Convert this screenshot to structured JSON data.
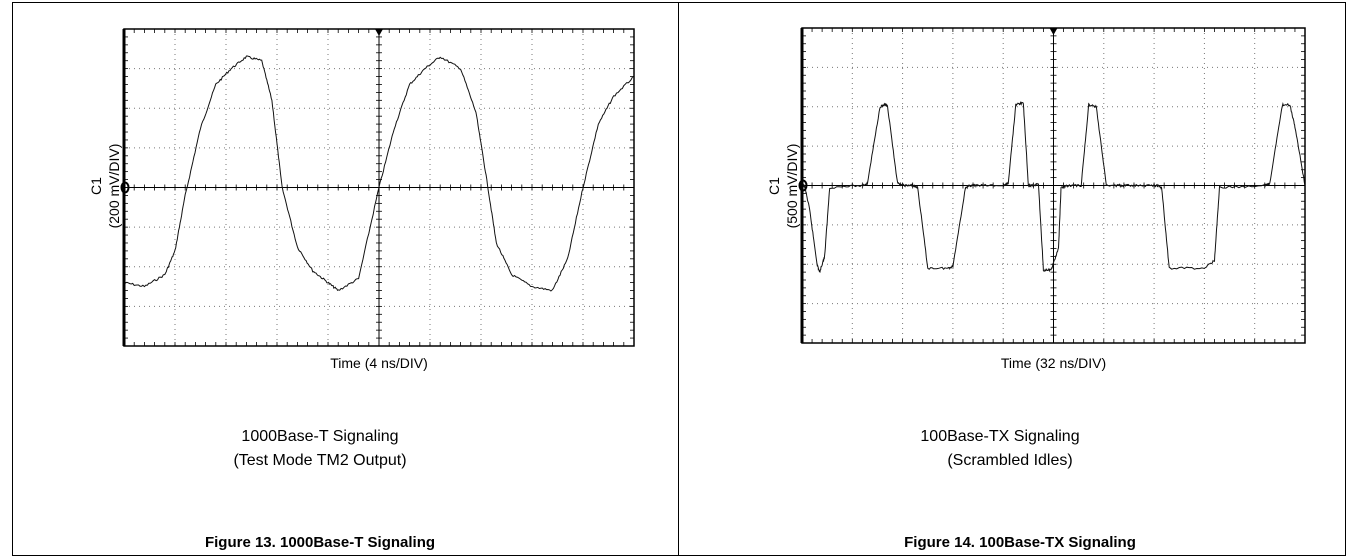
{
  "chart_data": [
    {
      "type": "line",
      "ylabel_channel": "C1",
      "ylabel_scale": "(200 mV/DIV)",
      "xlabel": "Time (4 ns/DIV)",
      "xlim": [
        0,
        10
      ],
      "ylim": [
        -4,
        4
      ],
      "grid": true,
      "caption_line1": "1000Base-T Signaling",
      "caption_line2": "(Test Mode TM2 Output)",
      "figure_title": "Figure 13. 1000Base-T Signaling",
      "series": [
        {
          "x": [
            0,
            0.4,
            0.8,
            1.0,
            1.2,
            1.5,
            1.8,
            2.1,
            2.4,
            2.7,
            2.9,
            3.1,
            3.4,
            3.7,
            4.0,
            4.2,
            4.6,
            5.0,
            5.3,
            5.6,
            5.9,
            6.2,
            6.6,
            6.9,
            7.1,
            7.3,
            7.6,
            8.0,
            8.4,
            8.7,
            9.0,
            9.3,
            9.6,
            10.0
          ],
          "y": [
            -2.4,
            -2.5,
            -2.2,
            -1.6,
            -0.2,
            1.5,
            2.6,
            3.0,
            3.3,
            3.2,
            2.2,
            0.0,
            -1.5,
            -2.1,
            -2.4,
            -2.6,
            -2.3,
            0.0,
            1.5,
            2.6,
            3.0,
            3.3,
            3.0,
            1.9,
            0.3,
            -1.4,
            -2.2,
            -2.5,
            -2.6,
            -1.8,
            0.0,
            1.6,
            2.3,
            2.8
          ]
        }
      ]
    },
    {
      "type": "line",
      "ylabel_channel": "C1",
      "ylabel_scale": "(500 mV/DIV)",
      "xlabel": "Time (32 ns/DIV)",
      "xlim": [
        0,
        10
      ],
      "ylim": [
        -4,
        4
      ],
      "grid": true,
      "caption_line1": "100Base-TX Signaling",
      "caption_line2": "(Scrambled Idles)",
      "figure_title": "Figure 14. 100Base-TX Signaling",
      "series": [
        {
          "x": [
            0,
            0.05,
            0.15,
            0.3,
            0.35,
            0.45,
            0.55,
            1.2,
            1.3,
            1.55,
            1.65,
            1.7,
            1.9,
            2.05,
            2.2,
            2.3,
            2.5,
            2.9,
            3.0,
            3.25,
            3.35,
            3.5,
            4.0,
            4.1,
            4.25,
            4.4,
            4.5,
            4.6,
            4.7,
            4.8,
            4.95,
            5.1,
            5.15,
            5.3,
            5.55,
            5.7,
            5.85,
            6.05,
            6.3,
            6.5,
            6.7,
            7.05,
            7.15,
            7.3,
            8.0,
            8.2,
            8.3,
            9.2,
            9.3,
            9.55,
            9.7,
            9.8,
            10.0
          ],
          "y": [
            0,
            0,
            -0.6,
            -2.0,
            -2.2,
            -1.8,
            -0.05,
            0,
            0.05,
            2.0,
            2.05,
            2.0,
            0.05,
            0,
            0,
            -0.05,
            -2.1,
            -2.1,
            -2.05,
            -0.05,
            0,
            0,
            0,
            0.05,
            2.05,
            2.1,
            0,
            0,
            0.05,
            -2.15,
            -2.15,
            -1.6,
            -0.05,
            0,
            0,
            2.05,
            2.0,
            0,
            0,
            0,
            0,
            0,
            -0.05,
            -2.1,
            -2.1,
            -1.9,
            -0.05,
            0,
            0.05,
            2.05,
            2.05,
            1.5,
            0
          ]
        }
      ]
    }
  ]
}
